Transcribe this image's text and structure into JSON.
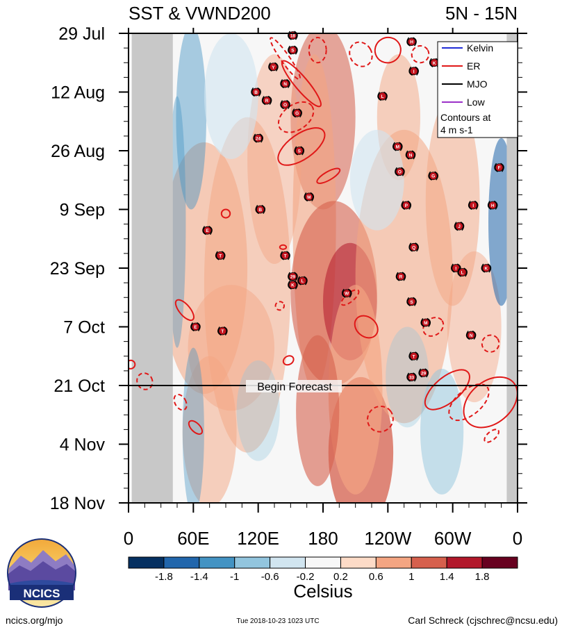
{
  "chart_data": {
    "type": "heatmap",
    "title_left": "SST & VWND200",
    "title_right": "5N - 15N",
    "x_tick_labels": [
      "0",
      "60E",
      "120E",
      "180",
      "120W",
      "60W",
      "0"
    ],
    "x_ticks_deg": [
      0,
      60,
      120,
      180,
      240,
      300,
      360
    ],
    "y_tick_labels": [
      "29 Jul",
      "12 Aug",
      "26 Aug",
      "9 Sep",
      "23 Sep",
      "7 Oct",
      "21 Oct",
      "4 Nov",
      "18 Nov"
    ],
    "y_ticks_day": [
      0,
      14,
      28,
      42,
      56,
      70,
      84,
      98,
      112
    ],
    "forecast_line_label": "Begin Forecast",
    "forecast_day": 84,
    "colorbar": {
      "unit_label": "Celsius",
      "tick_labels": [
        "-1.8",
        "-1.4",
        "-1",
        "-0.6",
        "-0.2",
        "0.2",
        "0.6",
        "1",
        "1.4",
        "1.8"
      ],
      "colors": [
        "#053061",
        "#2166ac",
        "#4393c3",
        "#92c5de",
        "#d1e5f0",
        "#f7f7f7",
        "#fddbc7",
        "#f4a582",
        "#d6604d",
        "#b2182b",
        "#67001f"
      ]
    },
    "legend": {
      "entries": [
        {
          "name": "Kelvin",
          "color": "#1f2bd6"
        },
        {
          "name": "ER",
          "color": "#e01818"
        },
        {
          "name": "MJO",
          "color": "#000000"
        },
        {
          "name": "Low",
          "color": "#9b30c8"
        }
      ],
      "note_line1": "Contours at",
      "note_line2": "4 m s-1"
    },
    "land_regions_deg": [
      [
        3,
        41
      ],
      [
        350,
        360
      ]
    ],
    "storms": [
      {
        "lon": 152,
        "day": 0.5,
        "label": "18"
      },
      {
        "lon": 152,
        "day": 4,
        "label": "S"
      },
      {
        "lon": 134,
        "day": 8,
        "label": "Y"
      },
      {
        "lon": 145,
        "day": 12,
        "label": "N"
      },
      {
        "lon": 118,
        "day": 14,
        "label": "B"
      },
      {
        "lon": 128,
        "day": 16,
        "label": "R"
      },
      {
        "lon": 145,
        "day": 17,
        "label": "O"
      },
      {
        "lon": 156,
        "day": 19,
        "label": "G"
      },
      {
        "lon": 120,
        "day": 25,
        "label": "24"
      },
      {
        "lon": 158,
        "day": 28,
        "label": "S"
      },
      {
        "lon": 167,
        "day": 39,
        "label": "M"
      },
      {
        "lon": 122,
        "day": 42,
        "label": "B"
      },
      {
        "lon": 73,
        "day": 47,
        "label": "E"
      },
      {
        "lon": 85,
        "day": 53,
        "label": "T"
      },
      {
        "lon": 145,
        "day": 53,
        "label": "T"
      },
      {
        "lon": 152,
        "day": 58,
        "label": "29"
      },
      {
        "lon": 152,
        "day": 60,
        "label": "K"
      },
      {
        "lon": 161,
        "day": 59,
        "label": "L"
      },
      {
        "lon": 202,
        "day": 62,
        "label": "W"
      },
      {
        "lon": 62,
        "day": 70,
        "label": "E"
      },
      {
        "lon": 87,
        "day": 71,
        "label": "T"
      },
      {
        "lon": 262,
        "day": 2,
        "label": "H"
      },
      {
        "lon": 295,
        "day": 6,
        "label": "J"
      },
      {
        "lon": 264,
        "day": 9,
        "label": "I"
      },
      {
        "lon": 283,
        "day": 7,
        "label": "K"
      },
      {
        "lon": 235,
        "day": 15,
        "label": "L"
      },
      {
        "lon": 249,
        "day": 27,
        "label": "M"
      },
      {
        "lon": 261,
        "day": 29,
        "label": "N"
      },
      {
        "lon": 251,
        "day": 33,
        "label": "O"
      },
      {
        "lon": 282,
        "day": 34,
        "label": "G"
      },
      {
        "lon": 257,
        "day": 41,
        "label": "P"
      },
      {
        "lon": 319,
        "day": 41,
        "label": "I"
      },
      {
        "lon": 337,
        "day": 41,
        "label": "H"
      },
      {
        "lon": 306,
        "day": 46,
        "label": "J"
      },
      {
        "lon": 343,
        "day": 32,
        "label": "F"
      },
      {
        "lon": 264,
        "day": 51,
        "label": "Q"
      },
      {
        "lon": 303,
        "day": 56,
        "label": "I"
      },
      {
        "lon": 309,
        "day": 57,
        "label": "L"
      },
      {
        "lon": 331,
        "day": 56,
        "label": "K"
      },
      {
        "lon": 252,
        "day": 58,
        "label": "R"
      },
      {
        "lon": 262,
        "day": 64,
        "label": "S"
      },
      {
        "lon": 275,
        "day": 69,
        "label": "M"
      },
      {
        "lon": 317,
        "day": 72,
        "label": "N"
      },
      {
        "lon": 264,
        "day": 77,
        "label": "T"
      },
      {
        "lon": 262,
        "day": 82,
        "label": "33"
      },
      {
        "lon": 273,
        "day": 81,
        "label": "29"
      }
    ]
  },
  "footer": {
    "logo_text": "NCICS",
    "left": "ncics.org/mjo",
    "center": "Tue 2018-10-23 1023 UTC",
    "right": "Carl Schreck (cjschrec@ncsu.edu)"
  }
}
